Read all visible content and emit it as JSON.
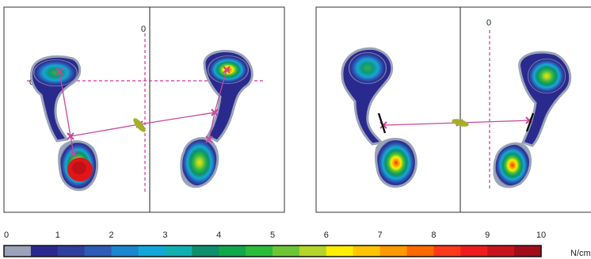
{
  "panels": [
    {
      "name": "left-pressure-panel",
      "origin_label": "0",
      "vertical_axis_label": "0"
    },
    {
      "name": "right-pressure-panel",
      "origin_label": "0"
    }
  ],
  "colorbar": {
    "ticks": [
      "0",
      "1",
      "2",
      "3",
      "4",
      "5",
      "6",
      "7",
      "8",
      "9",
      "10"
    ],
    "unit": "N/cm",
    "colors": [
      "#9aa3b8",
      "#2a2a8e",
      "#2e3f9e",
      "#2c5cb5",
      "#1a86d0",
      "#12a7d8",
      "#10b0b0",
      "#0f8f6b",
      "#10a84c",
      "#2dbb3c",
      "#6cc633",
      "#b5d42c",
      "#ffee00",
      "#ffc400",
      "#ff9900",
      "#ff6a00",
      "#ff3a1a",
      "#ee1c1c",
      "#c8141c",
      "#a00d18"
    ]
  }
}
